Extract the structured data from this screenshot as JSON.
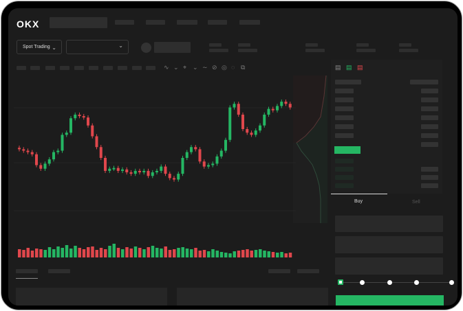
{
  "header": {
    "logo": "OKX"
  },
  "toolbar": {
    "market_selector": "Spot Trading",
    "pair_selector": ""
  },
  "trade": {
    "tabs": [
      {
        "label": "Buy",
        "active": true
      },
      {
        "label": "Sell",
        "active": false
      }
    ],
    "slider_value_percent": 0,
    "submit_color": "#25b663"
  },
  "colors": {
    "up": "#25b663",
    "down": "#e0474c",
    "background": "#1c1c1c"
  },
  "chart_data": {
    "type": "candlestick",
    "closes": [
      52,
      50,
      48,
      45,
      30,
      25,
      32,
      38,
      48,
      50,
      72,
      75,
      95,
      100,
      98,
      96,
      85,
      70,
      55,
      40,
      22,
      25,
      26,
      22,
      24,
      20,
      18,
      22,
      20,
      22,
      15,
      20,
      22,
      28,
      18,
      12,
      10,
      18,
      40,
      48,
      55,
      52,
      35,
      28,
      30,
      32,
      42,
      50,
      65,
      110,
      115,
      100,
      80,
      75,
      72,
      78,
      85,
      100,
      108,
      106,
      112,
      118,
      115,
      110
    ],
    "volumes": [
      60,
      55,
      70,
      50,
      65,
      60,
      55,
      75,
      60,
      80,
      70,
      90,
      65,
      85,
      70,
      60,
      75,
      80,
      55,
      70,
      60,
      85,
      100,
      70,
      60,
      75,
      65,
      80,
      70,
      60,
      75,
      85,
      70,
      65,
      80,
      55,
      60,
      70,
      75,
      65,
      60,
      70,
      50,
      55,
      45,
      60,
      50,
      40,
      35,
      30,
      45,
      50,
      55,
      60,
      50,
      55,
      60,
      50,
      45,
      40,
      35,
      40,
      30,
      35
    ]
  }
}
